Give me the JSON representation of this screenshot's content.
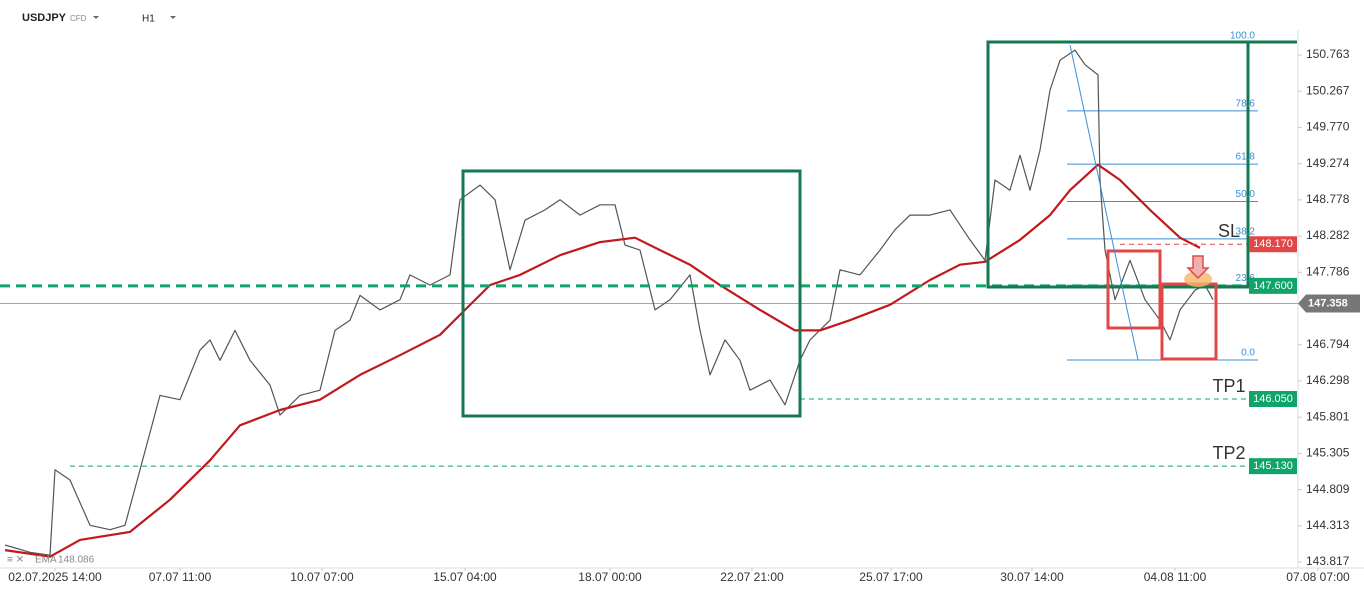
{
  "chart_data": {
    "type": "line",
    "symbol": "USDJPY",
    "symbol_type": "CFD",
    "timeframe": "H1",
    "xlim": [
      0,
      1364
    ],
    "xticks": [
      {
        "value": 55,
        "label": "02.07.2025 14:00"
      },
      {
        "value": 180,
        "label": "07.07 11:00"
      },
      {
        "value": 322,
        "label": "10.07 07:00"
      },
      {
        "value": 465,
        "label": "15.07 04:00"
      },
      {
        "value": 610,
        "label": "18.07 00:00"
      },
      {
        "value": 752,
        "label": "22.07 21:00"
      },
      {
        "value": 891,
        "label": "25.07 17:00"
      },
      {
        "value": 1032,
        "label": "30.07 14:00"
      },
      {
        "value": 1175,
        "label": "04.08 11:00"
      },
      {
        "value": 1318,
        "label": "07.08 07:00"
      }
    ],
    "ylim": [
      143.735,
      151.105
    ],
    "yticks": [
      150.763,
      150.267,
      {
        "value": 149.77,
        "label": "149.770"
      },
      149.274,
      148.778,
      148.282,
      147.786,
      146.794,
      146.298,
      145.801,
      145.305,
      144.809,
      144.313,
      143.817
    ],
    "series": [
      {
        "name": "USDJPY",
        "color": "#555555",
        "x": [
          5,
          30,
          50,
          55,
          70,
          90,
          110,
          125,
          140,
          160,
          180,
          200,
          210,
          220,
          235,
          250,
          270,
          280,
          300,
          320,
          335,
          350,
          360,
          380,
          400,
          410,
          430,
          450,
          460,
          480,
          495,
          510,
          525,
          545,
          560,
          580,
          600,
          615,
          625,
          640,
          655,
          670,
          690,
          700,
          710,
          725,
          740,
          750,
          770,
          785,
          800,
          810,
          830,
          840,
          860,
          880,
          895,
          910,
          930,
          950,
          970,
          985,
          995,
          1010,
          1020,
          1030,
          1040,
          1050,
          1060,
          1075,
          1085,
          1098,
          1100,
          1105,
          1115,
          1130,
          1145,
          1160,
          1170,
          1180,
          1195,
          1205,
          1213
        ],
        "values": [
          144.05,
          143.95,
          143.91,
          145.08,
          144.94,
          144.32,
          144.26,
          144.32,
          145.08,
          146.1,
          146.04,
          146.72,
          146.86,
          146.58,
          146.99,
          146.58,
          146.24,
          145.83,
          146.1,
          146.17,
          146.99,
          147.13,
          147.47,
          147.27,
          147.41,
          147.75,
          147.61,
          147.75,
          148.78,
          148.98,
          148.78,
          147.82,
          148.5,
          148.64,
          148.78,
          148.57,
          148.71,
          148.71,
          148.16,
          148.09,
          147.27,
          147.41,
          147.75,
          146.99,
          146.38,
          146.86,
          146.58,
          146.17,
          146.31,
          145.97,
          146.58,
          146.86,
          147.13,
          147.82,
          147.75,
          148.09,
          148.37,
          148.57,
          148.57,
          148.64,
          148.23,
          147.95,
          149.05,
          148.91,
          149.39,
          148.91,
          149.46,
          150.28,
          150.69,
          150.83,
          150.63,
          150.49,
          149.05,
          148.09,
          147.41,
          147.95,
          147.41,
          147.13,
          146.86,
          147.27,
          147.54,
          147.61,
          147.41
        ]
      },
      {
        "name": "EMA",
        "color": "#c0191e",
        "x": [
          5,
          50,
          80,
          130,
          170,
          210,
          240,
          280,
          320,
          360,
          400,
          440,
          465,
          490,
          520,
          560,
          600,
          635,
          660,
          690,
          720,
          760,
          795,
          820,
          850,
          890,
          930,
          960,
          985,
          1020,
          1050,
          1070,
          1098,
          1120,
          1150,
          1180,
          1200
        ],
        "values": [
          143.98,
          143.89,
          144.12,
          144.23,
          144.67,
          145.21,
          145.69,
          145.9,
          146.04,
          146.38,
          146.65,
          146.93,
          147.27,
          147.61,
          147.75,
          148.02,
          148.2,
          148.26,
          148.09,
          147.89,
          147.61,
          147.27,
          146.99,
          146.99,
          147.13,
          147.34,
          147.68,
          147.89,
          147.93,
          148.23,
          148.57,
          148.91,
          149.26,
          149.05,
          148.64,
          148.26,
          148.12
        ]
      }
    ],
    "ema_legend": {
      "name": "EMA",
      "value": 148.086
    },
    "last_price": 147.358,
    "levels": [
      {
        "name": "SL",
        "value": 148.17,
        "label": "148.170",
        "color": "#e04848"
      },
      {
        "value": 147.6,
        "label": "147.600",
        "color": "#10a36a"
      },
      {
        "name": "TP1",
        "value": 146.05,
        "label": "146.050",
        "color": "#10a36a"
      },
      {
        "name": "TP2",
        "value": 145.13,
        "label": "145.130",
        "color": "#10a36a"
      }
    ],
    "fibonacci": {
      "low": 146.584,
      "high": 150.927,
      "color": "#3a8fd8",
      "levels": [
        {
          "value": 100,
          "label": "100.0"
        },
        78.6,
        61.8,
        {
          "value": 50,
          "label": "50.0"
        },
        38.2,
        23.6,
        {
          "value": 0,
          "label": "0.0"
        }
      ]
    }
  }
}
